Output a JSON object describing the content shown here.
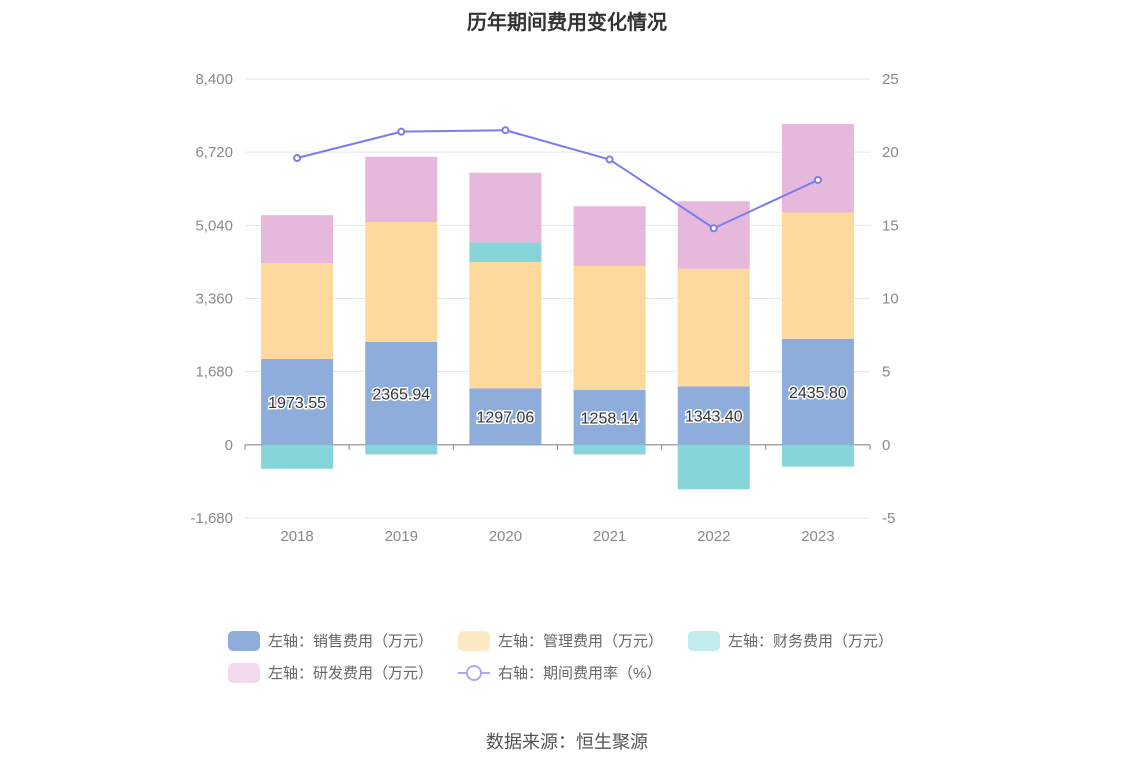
{
  "chart_data": {
    "type": "bar",
    "title": "历年期间费用变化情况",
    "categories": [
      "2018",
      "2019",
      "2020",
      "2021",
      "2022",
      "2023"
    ],
    "stacked": true,
    "left_axis": {
      "min": -1680,
      "max": 8400,
      "ticks": [
        "8,400",
        "6,720",
        "5,040",
        "3,360",
        "1,680",
        "0",
        "-1,680"
      ]
    },
    "right_axis": {
      "min": -5,
      "max": 25,
      "ticks": [
        "25",
        "20",
        "15",
        "10",
        "5",
        "0",
        "-5"
      ]
    },
    "series": [
      {
        "name": "左轴：销售费用（万元）",
        "axis": "left",
        "color": "#8eaddb",
        "values": [
          1973.55,
          2365.94,
          1297.06,
          1258.14,
          1343.4,
          2435.8
        ],
        "labels": [
          "1973.55",
          "2365.94",
          "1297.06",
          "1258.14",
          "1343.40",
          "2435.80"
        ]
      },
      {
        "name": "左轴：管理费用（万元）",
        "axis": "left",
        "color": "#fed89c",
        "values": [
          2200,
          2750,
          2900,
          2850,
          2700,
          2900
        ]
      },
      {
        "name": "左轴：财务费用（万元）",
        "axis": "left",
        "color": "#86d5d8",
        "values": [
          -550,
          -220,
          450,
          -220,
          -1020,
          -500
        ]
      },
      {
        "name": "左轴：研发费用（万元）",
        "axis": "left",
        "color": "#e6b9dc",
        "values": [
          1100,
          1500,
          1600,
          1370,
          1550,
          2030
        ]
      },
      {
        "name": "右轴：期间费用率（%）",
        "axis": "right",
        "type": "line",
        "color": "#7b7bef",
        "values": [
          19.6,
          21.4,
          21.5,
          19.5,
          14.8,
          18.1
        ]
      }
    ],
    "legend_position": "bottom"
  },
  "source_text": "数据来源：恒生聚源"
}
